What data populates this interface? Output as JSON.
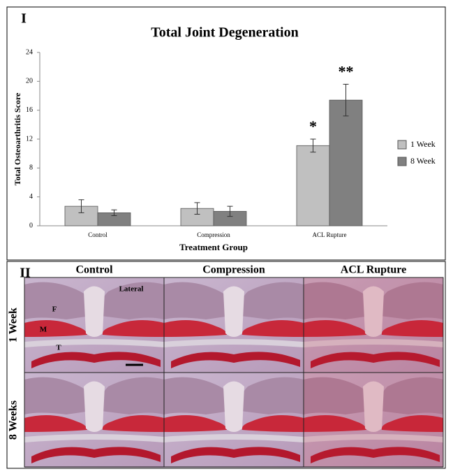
{
  "chart_data": {
    "type": "bar",
    "title": "Total Joint Degeneration",
    "x_label": "Treatment Group",
    "y_label": "Total Osteoarthritis Score",
    "categories": [
      "Control",
      "Compression",
      "ACL Rupture"
    ],
    "series": [
      {
        "name": "1 Week",
        "color": "#c0c0c0",
        "values": [
          2.7,
          2.4,
          11.1
        ],
        "errors": [
          0.9,
          0.8,
          0.9
        ]
      },
      {
        "name": "8 Week",
        "color": "#808080",
        "values": [
          1.8,
          2.0,
          17.4
        ],
        "errors": [
          0.4,
          0.7,
          2.2
        ]
      }
    ],
    "annotations": [
      "*",
      "**"
    ],
    "ylim": [
      0,
      24
    ],
    "yticks": [
      0,
      4,
      8,
      12,
      16,
      20,
      24
    ],
    "legend": "right"
  },
  "figure": {
    "panel_1_label": "I",
    "panel_2_label": "II",
    "columns": [
      "Control",
      "Compression",
      "ACL Rupture"
    ],
    "rows": [
      "1 Week",
      "8 Weeks"
    ],
    "image_labels": [
      "Lateral",
      "F",
      "M",
      "T"
    ]
  }
}
